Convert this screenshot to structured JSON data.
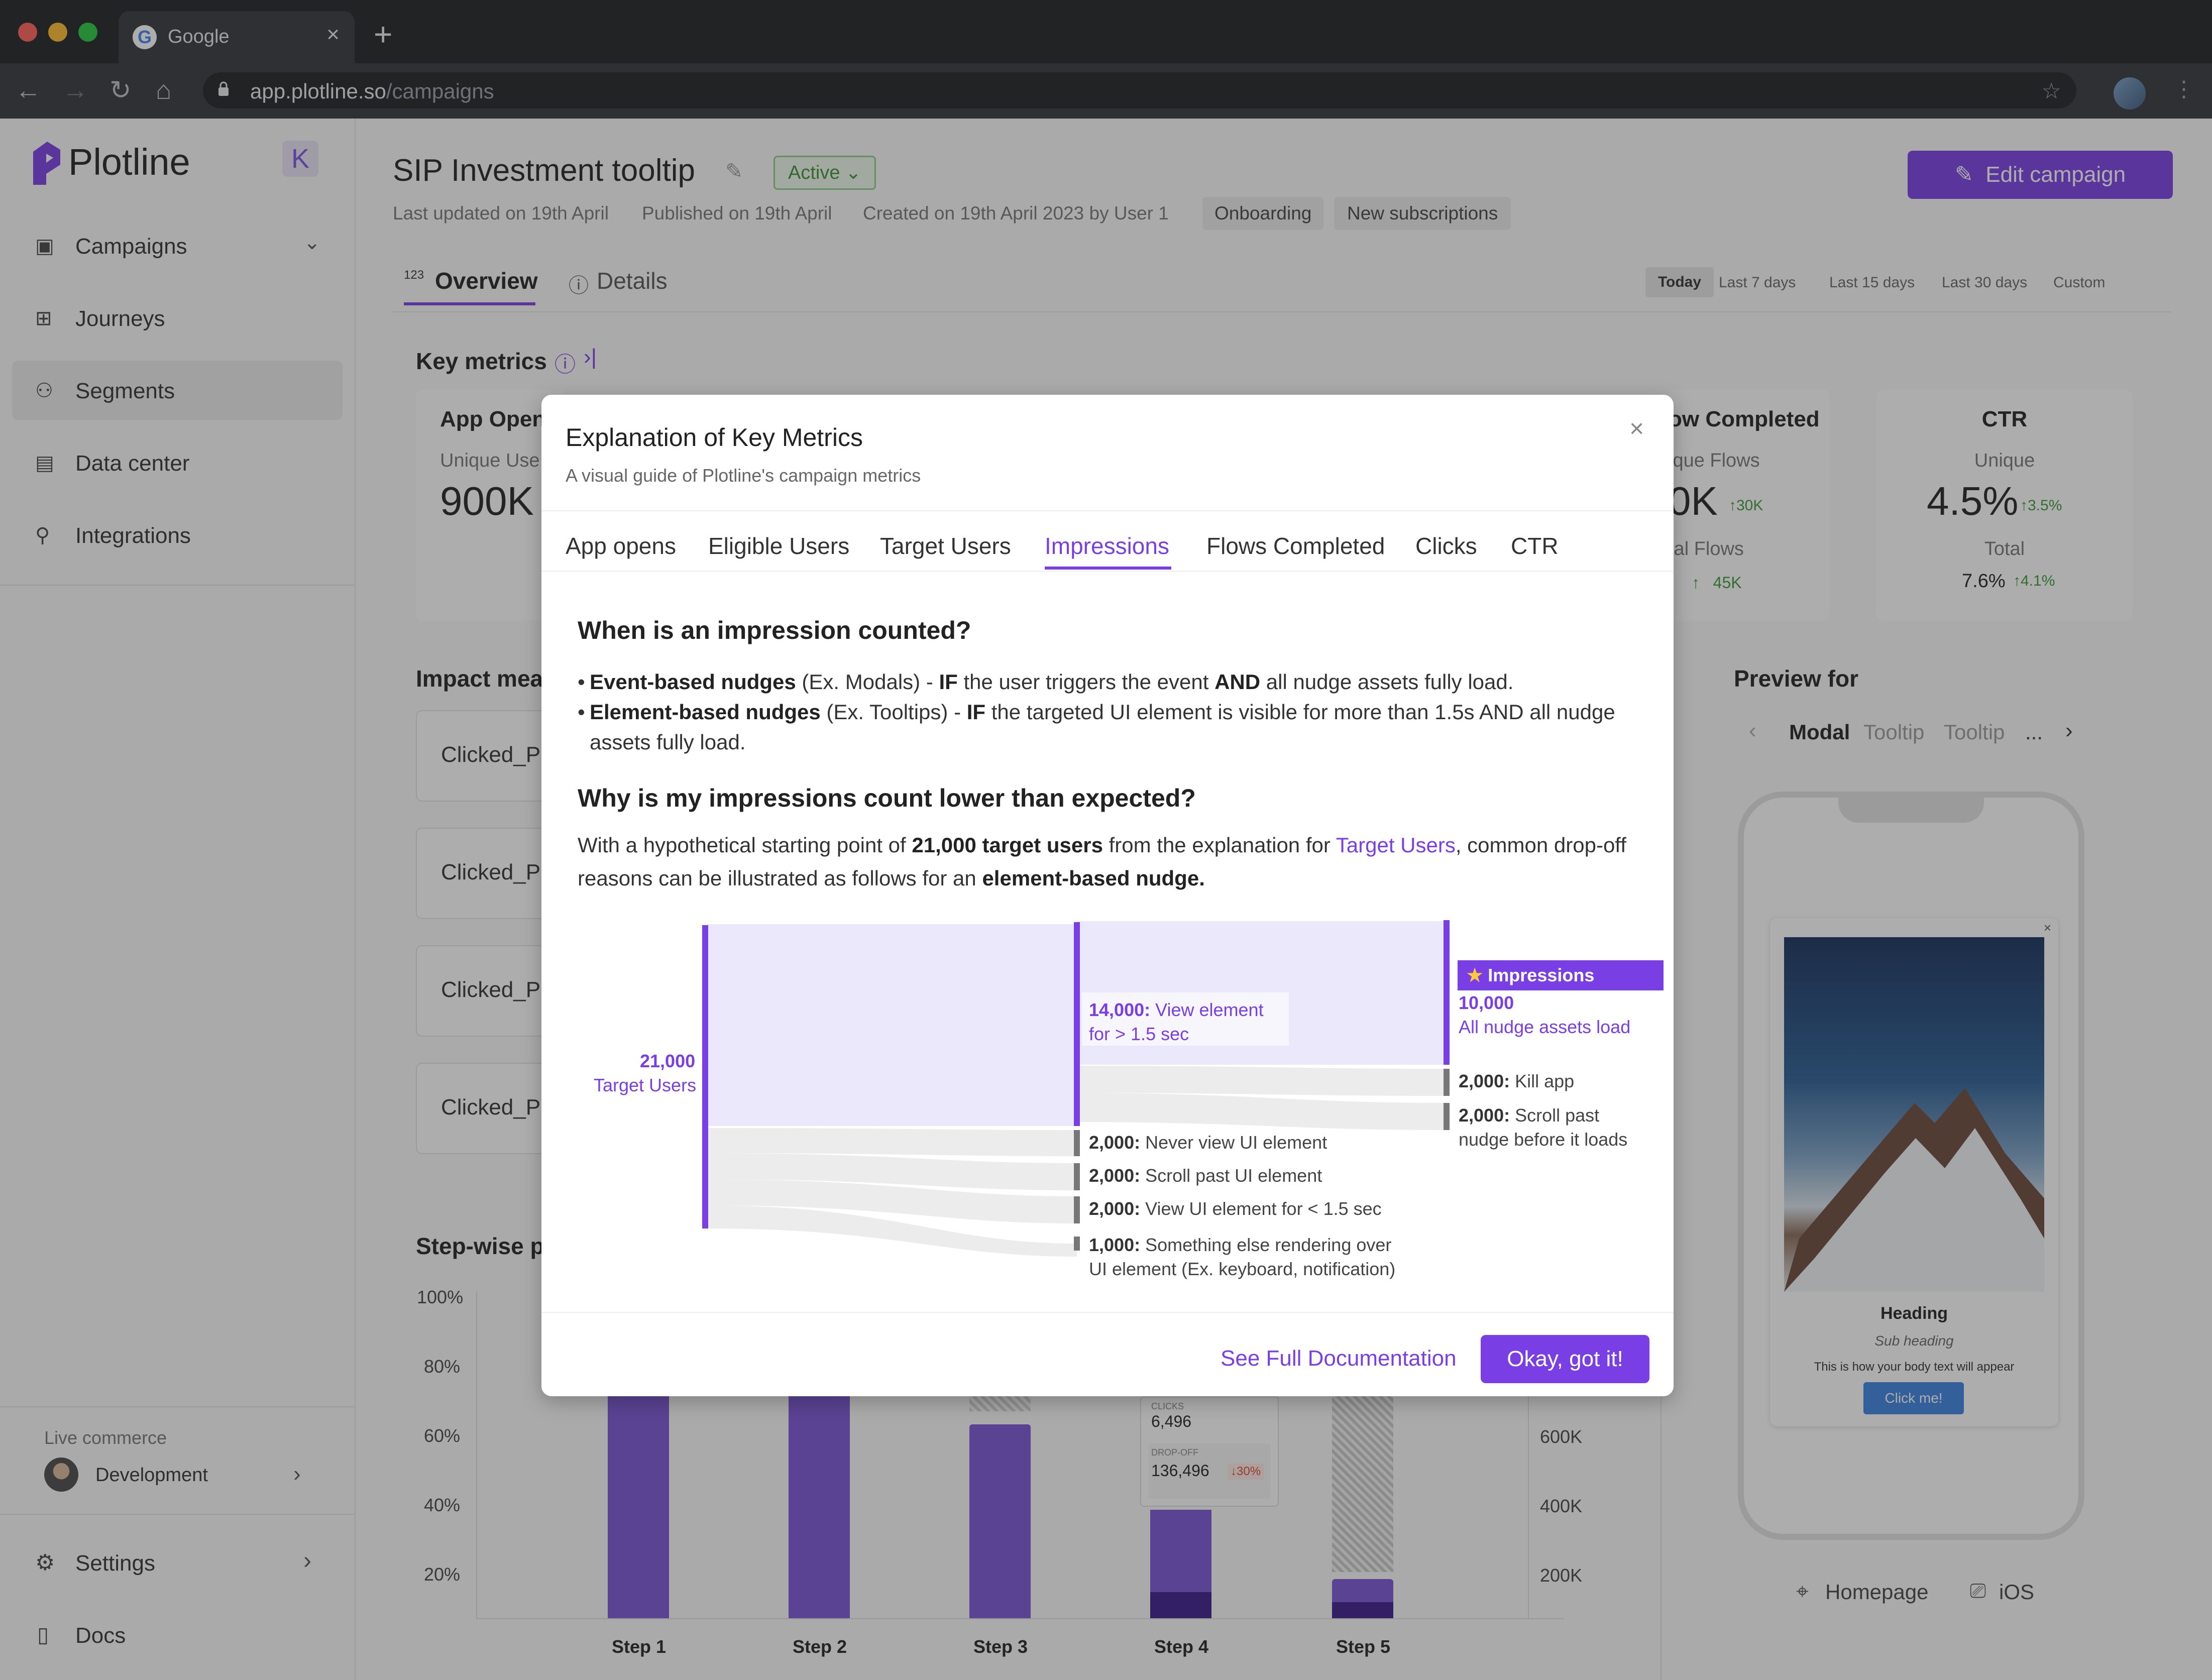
{
  "browser": {
    "tab_title": "Google",
    "url_host": "app.plotline.so",
    "url_path": "/campaigns"
  },
  "sidebar": {
    "brand": "Plotline",
    "collapse_label": "K",
    "items": [
      {
        "label": "Campaigns",
        "icon": "campaigns-icon"
      },
      {
        "label": "Journeys",
        "icon": "journeys-icon"
      },
      {
        "label": "Segments",
        "icon": "segments-icon"
      },
      {
        "label": "Data center",
        "icon": "data-center-icon"
      },
      {
        "label": "Integrations",
        "icon": "integrations-icon"
      }
    ],
    "workspace_label": "Live commerce",
    "workspace_name": "Development",
    "settings": "Settings",
    "docs": "Docs"
  },
  "header": {
    "title": "SIP Investment tooltip",
    "status": "Active",
    "last_updated": "Last updated on 19th April",
    "published": "Published on 19th April",
    "created": "Created on 19th April 2023 by User 1",
    "tags": [
      "Onboarding",
      "New subscriptions"
    ],
    "edit_button": "Edit campaign"
  },
  "page_tabs": {
    "overview": "Overview",
    "overview_badge": "123",
    "details": "Details"
  },
  "date_ranges": [
    "Today",
    "Last 7 days",
    "Last 15 days",
    "Last 30 days",
    "Custom"
  ],
  "key_metrics": {
    "title": "Key metrics",
    "app_opens": {
      "title": "App Open",
      "sub": "Unique Use",
      "value": "900K"
    },
    "flows": {
      "title": "ow Completed",
      "unique_label": "ique Flows",
      "unique_value": "0K",
      "unique_delta": "30K",
      "total_label": "tal Flows",
      "total_delta": "45K"
    },
    "ctr": {
      "title": "CTR",
      "unique_label": "Unique",
      "unique_value": "4.5%",
      "unique_delta": "3.5%",
      "total_label": "Total",
      "total_value": "7.6%",
      "total_delta": "4.1%"
    }
  },
  "impact": {
    "title": "Impact mea",
    "rows": [
      "Clicked_P",
      "Clicked_P",
      "Clicked_P",
      "Clicked_P"
    ]
  },
  "stepwise": {
    "title": "Step-wise p",
    "y_left": [
      "100%",
      "80%",
      "60%",
      "40%",
      "20%"
    ],
    "y_right": [
      "600K",
      "400K",
      "200K"
    ],
    "steps": [
      "Step 1",
      "Step 2",
      "Step 3",
      "Step 4",
      "Step 5"
    ],
    "tooltip": {
      "clicks_label": "CLICKS",
      "clicks_value": "6,496",
      "dropoff_label": "DROP-OFF",
      "dropoff_value": "136,496",
      "dropoff_delta": "30%"
    }
  },
  "preview": {
    "title": "Preview for",
    "tabs": [
      "Modal",
      "Tooltip",
      "Tooltip",
      "..."
    ],
    "card_heading": "Heading",
    "card_subheading": "Sub heading",
    "card_body": "This is how your body text will appear",
    "card_button": "Click me!",
    "location": "Homepage",
    "platform": "iOS"
  },
  "modal": {
    "title": "Explanation of Key Metrics",
    "subtitle": "A visual guide of Plotline's campaign metrics",
    "tabs": [
      "App opens",
      "Eligible Users",
      "Target Users",
      "Impressions",
      "Flows Completed",
      "Clicks",
      "CTR"
    ],
    "q1": "When is an impression counted?",
    "b1_bold": "Event-based nudges",
    "b1_a": " (Ex. Modals) - ",
    "b1_if": "IF",
    "b1_b": " the user triggers the event ",
    "b1_and": "AND",
    "b1_c": " all nudge assets fully load.",
    "b2_bold": "Element-based nudges",
    "b2_a": " (Ex. Tooltips) - ",
    "b2_if": "IF",
    "b2_b": " the targeted UI element is visible for more than 1.5s AND all nudge assets fully load.",
    "q2": "Why is my impressions count lower than expected?",
    "p_a": "With a hypothetical starting point of ",
    "p_bold1": "21,000 target users",
    "p_b": " from the explanation for ",
    "p_link": "Target Users",
    "p_c": ", common drop-off reasons can be illustrated as follows for an ",
    "p_bold2": "element-based nudge.",
    "sankey": {
      "start_value": "21,000",
      "start_label": "Target Users",
      "view_value": "14,000:",
      "view_label": "View element",
      "view_label2": "for > 1.5 sec",
      "impressions_badge": "Impressions",
      "imp_value": "10,000",
      "imp_label": "All nudge assets load",
      "kill_value": "2,000:",
      "kill_label": " Kill app",
      "scroll2_value": "2,000:",
      "scroll2_label": " Scroll past",
      "scroll2_label2": "nudge before it loads",
      "never_value": "2,000:",
      "never_label": " Never view UI element",
      "scroll_value": "2,000:",
      "scroll_label": " Scroll past UI element",
      "short_value": "2,000:",
      "short_label": " View UI element for < 1.5 sec",
      "else_value": "1,000:",
      "else_label": " Something else rendering over",
      "else_label2": "UI element (Ex. keyboard, notification)"
    },
    "docs_link": "See Full Documentation",
    "ok_button": "Okay, got it!"
  }
}
